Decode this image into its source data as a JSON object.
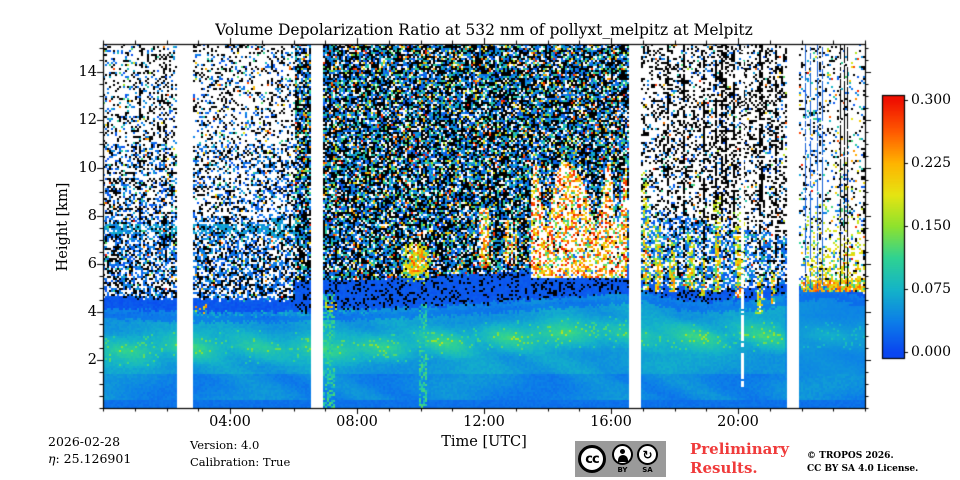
{
  "header": {
    "title": "Volume Depolarization Ratio at 532 nm of pollyxt_melpitz at Melpitz"
  },
  "chart_data": {
    "type": "heatmap",
    "title": "Volume Depolarization Ratio at 532 nm of pollyxt_melpitz at Melpitz",
    "xlabel": "Time [UTC]",
    "ylabel": "Height [km]",
    "x_range_hours": [
      0,
      24
    ],
    "y_range_km": [
      0,
      15.17
    ],
    "grid": false,
    "x_major_ticks": [
      {
        "hour": 4,
        "label": "04:00"
      },
      {
        "hour": 8,
        "label": "08:00"
      },
      {
        "hour": 12,
        "label": "12:00"
      },
      {
        "hour": 16,
        "label": "16:00"
      },
      {
        "hour": 20,
        "label": "20:00"
      }
    ],
    "x_minor_step_hours": 1,
    "y_major_ticks": [
      {
        "km": 2,
        "label": "2"
      },
      {
        "km": 4,
        "label": "4"
      },
      {
        "km": 6,
        "label": "6"
      },
      {
        "km": 8,
        "label": "8"
      },
      {
        "km": 10,
        "label": "10"
      },
      {
        "km": 12,
        "label": "12"
      },
      {
        "km": 14,
        "label": "14"
      }
    ],
    "y_minor_step_km": 0.5,
    "colorbar": {
      "vmin": 0.0,
      "vmax": 0.3,
      "ticks": [
        {
          "value": 0.0,
          "label": "0.000"
        },
        {
          "value": 0.075,
          "label": "0.075"
        },
        {
          "value": 0.15,
          "label": "0.150"
        },
        {
          "value": 0.225,
          "label": "0.225"
        },
        {
          "value": 0.3,
          "label": "0.300"
        }
      ],
      "stops": [
        [
          0.0,
          "#0a46f0"
        ],
        [
          0.125,
          "#0c7fe8"
        ],
        [
          0.25,
          "#14b4c8"
        ],
        [
          0.375,
          "#2fd292"
        ],
        [
          0.5,
          "#8ee22e"
        ],
        [
          0.625,
          "#e6e412"
        ],
        [
          0.75,
          "#ffb400"
        ],
        [
          0.875,
          "#ff5a00"
        ],
        [
          1.0,
          "#f01000"
        ]
      ]
    },
    "data_gaps_hours": [
      [
        2.3,
        2.83
      ],
      [
        6.55,
        6.93
      ],
      [
        16.54,
        16.93
      ],
      [
        21.57,
        21.89
      ]
    ],
    "boundary_layer_top_km": [
      [
        0,
        4.15
      ],
      [
        2,
        4.05
      ],
      [
        4,
        4.0
      ],
      [
        6,
        4.0
      ],
      [
        8,
        4.1
      ],
      [
        10,
        4.2
      ],
      [
        12,
        4.35
      ],
      [
        14,
        4.55
      ],
      [
        16,
        4.75
      ],
      [
        17,
        4.85
      ],
      [
        18,
        4.55
      ],
      [
        19,
        4.4
      ],
      [
        20,
        4.5
      ],
      [
        21,
        4.55
      ],
      [
        22,
        4.9
      ],
      [
        23,
        5.0
      ],
      [
        24,
        4.6
      ]
    ],
    "green_layer_center_km": [
      [
        0,
        2.35
      ],
      [
        4,
        2.6
      ],
      [
        8,
        2.45
      ],
      [
        12,
        2.85
      ],
      [
        15,
        3.15
      ],
      [
        18,
        2.95
      ],
      [
        21,
        3.0
      ],
      [
        24,
        3.05
      ]
    ],
    "noise_segments": [
      {
        "t": [
          0,
          6.02
        ],
        "style": "sparse-black-blue-speckle-on-white"
      },
      {
        "t": [
          6.02,
          16.54
        ],
        "style": "dense-multicolor-speckle"
      },
      {
        "t": [
          16.93,
          21.57
        ],
        "style": "blue-speckle-with-black-streaks"
      },
      {
        "t": [
          21.89,
          24
        ],
        "style": "sparse-speckle-with-vertical-lines"
      }
    ],
    "cloud_events": [
      {
        "kind": "orange_core",
        "t0": 9.35,
        "t1": 10.35,
        "h0": 5.2,
        "h1": 7.4
      },
      {
        "kind": "streaks",
        "t0": 11.85,
        "t1": 12.15,
        "h0": 5.9,
        "h1": 8.3
      },
      {
        "kind": "streaks",
        "t0": 12.65,
        "t1": 13.05,
        "h0": 6.0,
        "h1": 7.8
      },
      {
        "kind": "complex",
        "t0": 13.5,
        "t1": 16.5,
        "h0": 5.4,
        "h1": 10.3
      },
      {
        "kind": "virga",
        "t0": 16.95,
        "t1": 17.25,
        "h0": 4.9,
        "h1": 9.8
      },
      {
        "kind": "virga",
        "t0": 17.35,
        "t1": 17.65,
        "h0": 4.8,
        "h1": 7.6
      },
      {
        "kind": "virga",
        "t0": 17.8,
        "t1": 18.1,
        "h0": 4.8,
        "h1": 7.0
      },
      {
        "kind": "virga",
        "t0": 18.35,
        "t1": 18.65,
        "h0": 4.9,
        "h1": 7.4
      },
      {
        "kind": "virga",
        "t0": 18.8,
        "t1": 19.0,
        "h0": 4.7,
        "h1": 6.4
      },
      {
        "kind": "virga",
        "t0": 19.2,
        "t1": 19.5,
        "h0": 4.8,
        "h1": 8.8
      },
      {
        "kind": "virga",
        "t0": 19.85,
        "t1": 20.25,
        "h0": 4.6,
        "h1": 8.2
      },
      {
        "kind": "virga",
        "t0": 20.55,
        "t1": 20.85,
        "h0": 3.95,
        "h1": 5.6
      },
      {
        "kind": "virga",
        "t0": 21.0,
        "t1": 21.2,
        "h0": 4.3,
        "h1": 6.0
      },
      {
        "kind": "scatter",
        "t0": 22.0,
        "t1": 24.0,
        "h0": 4.8,
        "h1": 9.2
      }
    ],
    "aerosol_patches": [
      {
        "t": [
          5.25,
          5.65
        ],
        "h": [
          6.9,
          7.9
        ]
      },
      {
        "t": [
          0,
          7.6
        ],
        "h": [
          7.25,
          7.65
        ]
      }
    ],
    "green_spikes": [
      {
        "t": [
          6.93,
          7.3
        ],
        "top_km": 4.75
      },
      {
        "t": [
          9.95,
          10.18
        ],
        "top_km": 4.35
      }
    ],
    "bl_top_orange_dots": [
      [
        2.55,
        3.3
      ],
      [
        6.95,
        7.35
      ]
    ],
    "vertical_lines": [
      {
        "t": 20.1,
        "color": "#ffffff",
        "bottom_km": 0.9,
        "width": 3
      },
      {
        "t": 22.12,
        "color": "#1b63d6",
        "bottom_km": 4.9,
        "width": 1
      },
      {
        "t": 22.27,
        "color": "#1b63d6",
        "bottom_km": 5.0,
        "width": 1
      },
      {
        "t": 22.5,
        "color": "#1b63d6",
        "bottom_km": 4.8,
        "width": 1
      },
      {
        "t": 22.64,
        "color": "#1b63d6",
        "bottom_km": 5.2,
        "width": 1
      },
      {
        "t": 23.2,
        "color": "#000000",
        "bottom_km": 5.2,
        "width": 1
      },
      {
        "t": 23.33,
        "color": "#000000",
        "bottom_km": 5.4,
        "width": 1
      },
      {
        "t": 23.44,
        "color": "#000000",
        "bottom_km": 5.1,
        "width": 1
      }
    ],
    "seed": 1337
  },
  "footer": {
    "date": "2026-02-28",
    "eta_symbol": "η",
    "eta_value": ": 25.126901",
    "version": "Version: 4.0",
    "calibration": "Calibration: True",
    "preliminary": {
      "line1": "Preliminary",
      "line2": "Results.",
      "color": "#f03b3b"
    },
    "license_badge": {
      "cc": "cc",
      "by": "BY",
      "sa": "SA",
      "sa_arrow": "↻"
    },
    "copyright_line1": "© TROPOS 2026.",
    "copyright_line2": "CC BY SA 4.0 License."
  }
}
